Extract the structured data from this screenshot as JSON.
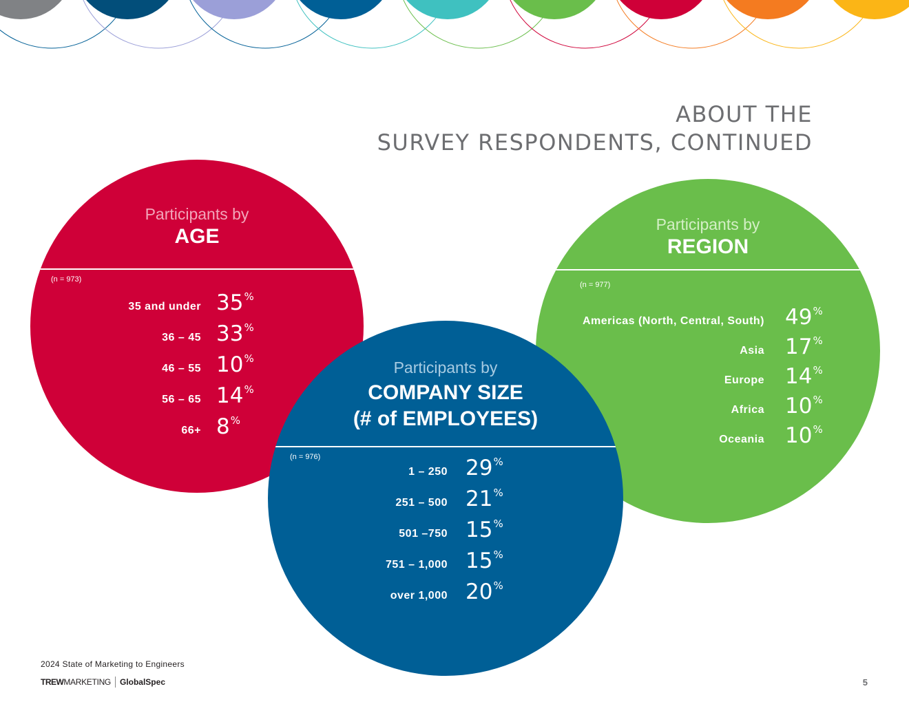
{
  "page": {
    "title_line1": "ABOUT THE",
    "title_line2": "SURVEY RESPONDENTS, CONTINUED",
    "page_number": "5"
  },
  "footer": {
    "report_title": "2024 State of Marketing to Engineers",
    "logo_trew_bold": "TREW",
    "logo_trew_rest": "MARKETING",
    "logo_globalspec": "GlobalSpec"
  },
  "colors": {
    "age": "#cf0038",
    "region": "#6abe4b",
    "company_size": "#005f96",
    "title_gray": "#6d6e71"
  },
  "age": {
    "heading_prefix": "Participants by",
    "heading": "AGE",
    "n": "(n = 973)",
    "rows": [
      {
        "label": "35 and under",
        "value": "35",
        "unit": "%"
      },
      {
        "label": "36 – 45",
        "value": "33",
        "unit": "%"
      },
      {
        "label": "46 – 55",
        "value": "10",
        "unit": "%"
      },
      {
        "label": "56 – 65",
        "value": "14",
        "unit": "%"
      },
      {
        "label": "66+",
        "value": "8",
        "unit": "%"
      }
    ]
  },
  "region": {
    "heading_prefix": "Participants by",
    "heading": "REGION",
    "n": "(n = 977)",
    "rows": [
      {
        "label": "Americas (North, Central, South)",
        "value": "49",
        "unit": "%"
      },
      {
        "label": "Asia",
        "value": "17",
        "unit": "%"
      },
      {
        "label": "Europe",
        "value": "14",
        "unit": "%"
      },
      {
        "label": "Africa",
        "value": "10",
        "unit": "%"
      },
      {
        "label": "Oceania",
        "value": "10",
        "unit": "%"
      }
    ]
  },
  "company_size": {
    "heading_prefix": "Participants by",
    "heading_line1": "COMPANY SIZE",
    "heading_line2": "(# of EMPLOYEES)",
    "n": "(n = 976)",
    "rows": [
      {
        "label": "1 – 250",
        "value": "29",
        "unit": "%"
      },
      {
        "label": "251 – 500",
        "value": "21",
        "unit": "%"
      },
      {
        "label": "501 –750",
        "value": "15",
        "unit": "%"
      },
      {
        "label": "751 – 1,000",
        "value": "15",
        "unit": "%"
      },
      {
        "label": "over 1,000",
        "value": "20",
        "unit": "%"
      }
    ]
  }
}
